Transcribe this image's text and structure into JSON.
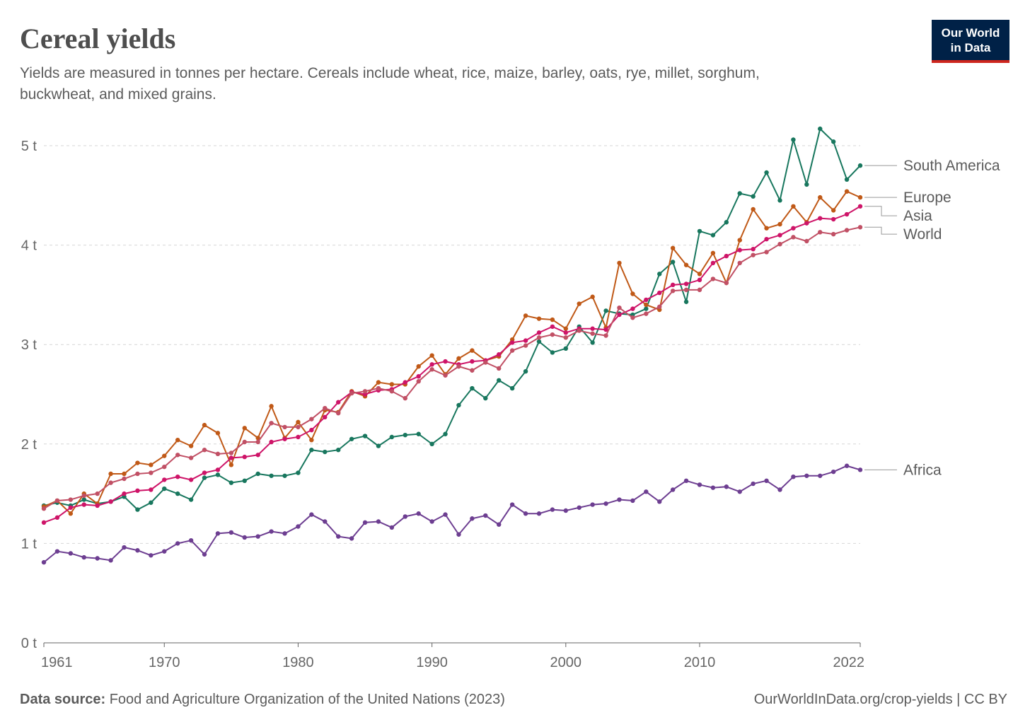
{
  "chart_data": {
    "type": "line",
    "title": "Cereal yields",
    "subtitle": [
      "Yields are measured in tonnes per hectare. Cereals include wheat, rice, maize, barley, oats, rye, millet, sorghum,",
      "buckwheat, and mixed grains."
    ],
    "logo": [
      "Our World",
      "in Data"
    ],
    "source_label": "Data source:",
    "source": "Food and Agriculture Organization of the United Nations (2023)",
    "credit": "OurWorldInData.org/crop-yields | CC BY",
    "x": [
      1961,
      1962,
      1963,
      1964,
      1965,
      1966,
      1967,
      1968,
      1969,
      1970,
      1971,
      1972,
      1973,
      1974,
      1975,
      1976,
      1977,
      1978,
      1979,
      1980,
      1981,
      1982,
      1983,
      1984,
      1985,
      1986,
      1987,
      1988,
      1989,
      1990,
      1991,
      1992,
      1993,
      1994,
      1995,
      1996,
      1997,
      1998,
      1999,
      2000,
      2001,
      2002,
      2003,
      2004,
      2005,
      2006,
      2007,
      2008,
      2009,
      2010,
      2011,
      2012,
      2013,
      2014,
      2015,
      2016,
      2017,
      2018,
      2019,
      2020,
      2021,
      2022
    ],
    "xlim": [
      1961,
      2022
    ],
    "xticks": [
      1961,
      1970,
      1980,
      1990,
      2000,
      2010,
      2022
    ],
    "ylim": [
      0,
      5.2
    ],
    "yticks": [
      {
        "value": 0,
        "label": "0 t"
      },
      {
        "value": 1,
        "label": "1 t"
      },
      {
        "value": 2,
        "label": "2 t"
      },
      {
        "value": 3,
        "label": "3 t"
      },
      {
        "value": 4,
        "label": "4 t"
      },
      {
        "value": 5,
        "label": "5 t"
      }
    ],
    "grid": true,
    "series": [
      {
        "name": "South America",
        "color": "#18775e",
        "values": [
          1.38,
          1.41,
          1.38,
          1.44,
          1.4,
          1.42,
          1.47,
          1.34,
          1.41,
          1.55,
          1.5,
          1.44,
          1.66,
          1.69,
          1.61,
          1.63,
          1.7,
          1.68,
          1.68,
          1.71,
          1.94,
          1.92,
          1.94,
          2.05,
          2.08,
          1.98,
          2.07,
          2.09,
          2.1,
          2.0,
          2.1,
          2.39,
          2.56,
          2.46,
          2.64,
          2.56,
          2.73,
          3.03,
          2.92,
          2.96,
          3.18,
          3.02,
          3.34,
          3.31,
          3.3,
          3.36,
          3.71,
          3.83,
          3.43,
          4.14,
          4.1,
          4.23,
          4.52,
          4.49,
          4.73,
          4.45,
          5.06,
          4.61,
          5.17,
          5.04,
          4.66,
          4.8
        ]
      },
      {
        "name": "Europe",
        "color": "#c05917",
        "values": [
          1.37,
          1.43,
          1.3,
          1.5,
          1.4,
          1.7,
          1.7,
          1.81,
          1.79,
          1.88,
          2.04,
          1.98,
          2.19,
          2.11,
          1.79,
          2.16,
          2.06,
          2.38,
          2.06,
          2.22,
          2.04,
          2.34,
          2.32,
          2.53,
          2.48,
          2.62,
          2.6,
          2.6,
          2.78,
          2.89,
          2.7,
          2.86,
          2.94,
          2.84,
          2.88,
          3.05,
          3.29,
          3.26,
          3.25,
          3.16,
          3.41,
          3.48,
          3.17,
          3.82,
          3.51,
          3.4,
          3.35,
          3.97,
          3.8,
          3.71,
          3.92,
          3.62,
          4.05,
          4.36,
          4.17,
          4.21,
          4.39,
          4.23,
          4.48,
          4.35,
          4.54,
          4.48
        ]
      },
      {
        "name": "Asia",
        "color": "#ce1468",
        "values": [
          1.21,
          1.26,
          1.36,
          1.39,
          1.38,
          1.42,
          1.5,
          1.53,
          1.54,
          1.64,
          1.67,
          1.64,
          1.71,
          1.74,
          1.86,
          1.87,
          1.89,
          2.02,
          2.05,
          2.07,
          2.14,
          2.27,
          2.42,
          2.52,
          2.5,
          2.54,
          2.55,
          2.62,
          2.68,
          2.8,
          2.83,
          2.8,
          2.83,
          2.84,
          2.9,
          3.02,
          3.04,
          3.12,
          3.18,
          3.12,
          3.16,
          3.16,
          3.15,
          3.3,
          3.36,
          3.45,
          3.52,
          3.6,
          3.61,
          3.65,
          3.82,
          3.89,
          3.95,
          3.96,
          4.06,
          4.1,
          4.17,
          4.22,
          4.27,
          4.26,
          4.31,
          4.39
        ]
      },
      {
        "name": "World",
        "color": "#c15065",
        "values": [
          1.35,
          1.43,
          1.44,
          1.48,
          1.5,
          1.61,
          1.65,
          1.7,
          1.71,
          1.77,
          1.89,
          1.86,
          1.94,
          1.9,
          1.91,
          2.02,
          2.02,
          2.21,
          2.17,
          2.17,
          2.25,
          2.36,
          2.31,
          2.51,
          2.53,
          2.56,
          2.53,
          2.46,
          2.63,
          2.75,
          2.69,
          2.78,
          2.74,
          2.82,
          2.76,
          2.94,
          2.99,
          3.07,
          3.1,
          3.07,
          3.14,
          3.11,
          3.09,
          3.37,
          3.27,
          3.31,
          3.38,
          3.54,
          3.55,
          3.55,
          3.66,
          3.62,
          3.82,
          3.9,
          3.93,
          4.01,
          4.08,
          4.04,
          4.13,
          4.11,
          4.15,
          4.18
        ]
      },
      {
        "name": "Africa",
        "color": "#6d3e91",
        "values": [
          0.81,
          0.92,
          0.9,
          0.86,
          0.85,
          0.83,
          0.96,
          0.93,
          0.88,
          0.92,
          1.0,
          1.03,
          0.89,
          1.1,
          1.11,
          1.06,
          1.07,
          1.12,
          1.1,
          1.17,
          1.29,
          1.22,
          1.07,
          1.05,
          1.21,
          1.22,
          1.16,
          1.27,
          1.3,
          1.22,
          1.29,
          1.09,
          1.25,
          1.28,
          1.19,
          1.39,
          1.3,
          1.3,
          1.34,
          1.33,
          1.36,
          1.39,
          1.4,
          1.44,
          1.43,
          1.52,
          1.42,
          1.54,
          1.63,
          1.59,
          1.56,
          1.57,
          1.52,
          1.6,
          1.63,
          1.54,
          1.67,
          1.68,
          1.68,
          1.72,
          1.78,
          1.74
        ]
      }
    ]
  }
}
